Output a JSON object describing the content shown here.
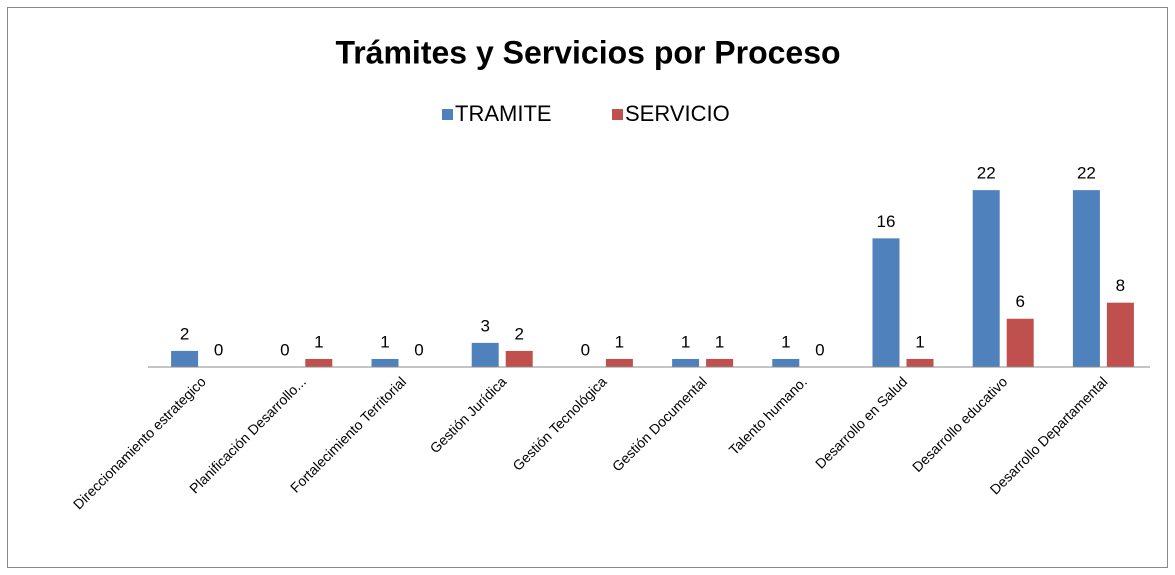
{
  "chart_data": {
    "type": "bar",
    "title": "Trámites y Servicios por Proceso",
    "categories": [
      "Direccionamiento estrategico",
      "Planificación Desarrollo...",
      "Fortalecimiento Territorial",
      "Gestión Jurídica",
      "Gestión Tecnológica",
      "Gestión Documental",
      "Talento humano.",
      "Desarrollo en Salud",
      "Desarrollo educativo",
      "Desarrollo Departamental"
    ],
    "series": [
      {
        "name": "TRAMITE",
        "color": "#4f81bd",
        "values": [
          2,
          0,
          1,
          3,
          0,
          1,
          1,
          16,
          22,
          22
        ]
      },
      {
        "name": "SERVICIO",
        "color": "#c0504d",
        "values": [
          0,
          1,
          0,
          2,
          1,
          1,
          0,
          1,
          6,
          8
        ]
      }
    ],
    "ylim": [
      0,
      25
    ],
    "legend": "top"
  }
}
